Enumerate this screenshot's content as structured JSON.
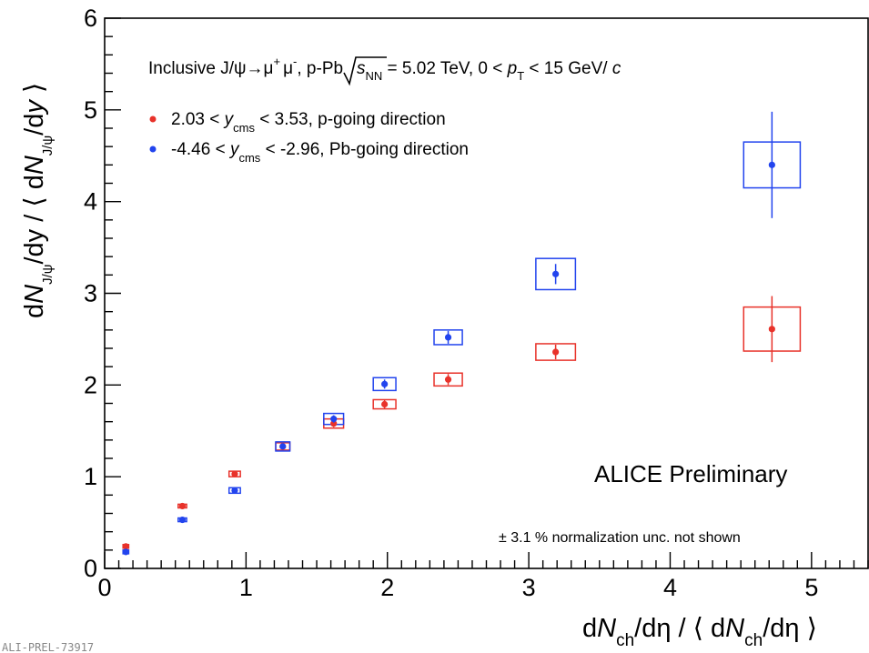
{
  "chart_data": {
    "type": "scatter",
    "xlim": [
      0,
      5.4
    ],
    "ylim": [
      0,
      6
    ],
    "xticks": [
      "0",
      "1",
      "2",
      "3",
      "4",
      "5"
    ],
    "yticks": [
      "0",
      "1",
      "2",
      "3",
      "4",
      "5",
      "6"
    ],
    "xlabel": "dN_ch/dη / ⟨dN_ch/dη⟩",
    "ylabel": "dN_J/ψ/dy / ⟨dN_J/ψ/dy⟩",
    "header": "Inclusive J/ψ→μ⁺μ⁻, p-Pb √s_NN = 5.02 TeV, 0 < p_T < 15 GeV/c",
    "series": [
      {
        "name": "2.03 < y_cms < 3.53, p-going direction",
        "color": "#e8322a",
        "points": [
          {
            "x": 0.15,
            "y": 0.24,
            "stat": 0.02,
            "sx": 0.02,
            "sy": 0.02
          },
          {
            "x": 0.55,
            "y": 0.68,
            "stat": 0.02,
            "sx": 0.03,
            "sy": 0.02
          },
          {
            "x": 0.92,
            "y": 1.03,
            "stat": 0.02,
            "sx": 0.04,
            "sy": 0.03
          },
          {
            "x": 1.26,
            "y": 1.33,
            "stat": 0.03,
            "sx": 0.05,
            "sy": 0.04
          },
          {
            "x": 1.62,
            "y": 1.58,
            "stat": 0.04,
            "sx": 0.07,
            "sy": 0.05
          },
          {
            "x": 1.98,
            "y": 1.79,
            "stat": 0.05,
            "sx": 0.08,
            "sy": 0.05
          },
          {
            "x": 2.43,
            "y": 2.06,
            "stat": 0.06,
            "sx": 0.1,
            "sy": 0.07
          },
          {
            "x": 3.19,
            "y": 2.36,
            "stat": 0.08,
            "sx": 0.14,
            "sy": 0.09
          },
          {
            "x": 4.72,
            "y": 2.61,
            "stat": 0.36,
            "sx": 0.2,
            "sy": 0.24
          }
        ]
      },
      {
        "name": "-4.46 < y_cms < -2.96, Pb-going direction",
        "color": "#2244ee",
        "points": [
          {
            "x": 0.15,
            "y": 0.18,
            "stat": 0.02,
            "sx": 0.02,
            "sy": 0.02
          },
          {
            "x": 0.55,
            "y": 0.53,
            "stat": 0.02,
            "sx": 0.03,
            "sy": 0.02
          },
          {
            "x": 0.92,
            "y": 0.85,
            "stat": 0.02,
            "sx": 0.04,
            "sy": 0.03
          },
          {
            "x": 1.26,
            "y": 1.33,
            "stat": 0.03,
            "sx": 0.05,
            "sy": 0.05
          },
          {
            "x": 1.62,
            "y": 1.63,
            "stat": 0.04,
            "sx": 0.07,
            "sy": 0.06
          },
          {
            "x": 1.98,
            "y": 2.01,
            "stat": 0.05,
            "sx": 0.08,
            "sy": 0.07
          },
          {
            "x": 2.43,
            "y": 2.52,
            "stat": 0.07,
            "sx": 0.1,
            "sy": 0.08
          },
          {
            "x": 3.19,
            "y": 3.21,
            "stat": 0.11,
            "sx": 0.14,
            "sy": 0.17
          },
          {
            "x": 4.72,
            "y": 4.4,
            "stat": 0.58,
            "sx": 0.2,
            "sy": 0.25
          }
        ]
      }
    ],
    "annotations": {
      "experiment": "ALICE Preliminary",
      "normalization": "± 3.1 % normalization unc. not shown",
      "figure_id": "ALI-PREL-73917"
    }
  },
  "text": {
    "header_part1": "Inclusive J/",
    "header_psi": "ψ",
    "header_arrow": "→",
    "header_mu1": "μ",
    "header_plus": "+",
    "header_mu2": "μ",
    "header_minus": "-",
    "header_part2": ", p-Pb",
    "header_s": "s",
    "header_nn": "NN",
    "header_part3": " = 5.02 TeV, 0 < ",
    "header_p": "p",
    "header_t": "T",
    "header_part4": " < 15 GeV/ ",
    "header_c": "c",
    "leg1_pre": "2.03 < ",
    "leg1_y": "y",
    "leg1_cms": "cms",
    "leg1_post": " < 3.53, p-going direction",
    "leg2_pre": "-4.46 < ",
    "leg2_y": "y",
    "leg2_cms": "cms",
    "leg2_post": " < -2.96, Pb-going direction",
    "xlabel_d1": "d",
    "xlabel_N1": "N",
    "xlabel_ch1": "ch",
    "xlabel_mid": "/dη / ⟨ d",
    "xlabel_N2": "N",
    "xlabel_ch2": "ch",
    "xlabel_end": "/dη ⟩",
    "ylabel_d1": "d",
    "ylabel_N1": "N",
    "ylabel_sub1": "J/ψ",
    "ylabel_mid": "/dy / ⟨ d",
    "ylabel_N2": "N",
    "ylabel_sub2": "J/ψ",
    "ylabel_end": "/d",
    "ylabel_y": "y",
    "ylabel_close": " ⟩"
  }
}
